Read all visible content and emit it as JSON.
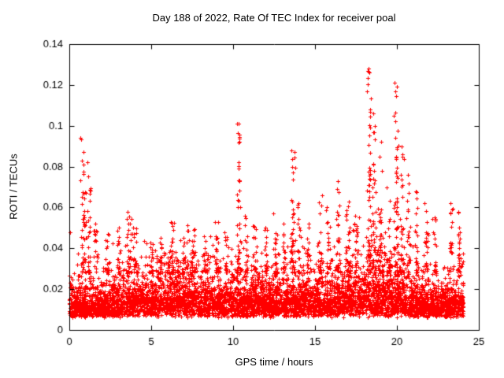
{
  "chart_data": {
    "type": "scatter",
    "title": "Day 188 of 2022, Rate Of TEC Index for receiver poal",
    "xlabel": "GPS time / hours",
    "ylabel": "ROTI / TECUs",
    "xlim": [
      0,
      25
    ],
    "ylim": [
      0,
      0.14
    ],
    "xticks": [
      0,
      5,
      10,
      15,
      20,
      25
    ],
    "yticks": [
      0,
      0.02,
      0.04,
      0.06,
      0.08,
      0.1,
      0.12,
      0.14
    ],
    "grid": false,
    "legend": "none",
    "marker": "plus",
    "marker_color": "#ff0000",
    "axis_color": "#000000",
    "background": "#ffffff",
    "seed": 188,
    "data_x_range": [
      0,
      24.05
    ],
    "baseline_band": {
      "count": 6000,
      "y_floor": 0.006,
      "y_scale": 0.0095,
      "y_typical": [
        0.01,
        0.03
      ],
      "y_cap": 0.062
    },
    "spikes": [
      {
        "x": 0.85,
        "peak": 0.094,
        "count": 45,
        "spread": 0.1
      },
      {
        "x": 1.2,
        "peak": 0.082,
        "count": 30,
        "spread": 0.08
      },
      {
        "x": 1.6,
        "peak": 0.052,
        "count": 18,
        "spread": 0.1
      },
      {
        "x": 2.3,
        "peak": 0.047,
        "count": 14,
        "spread": 0.1
      },
      {
        "x": 3.0,
        "peak": 0.05,
        "count": 18,
        "spread": 0.1
      },
      {
        "x": 3.6,
        "peak": 0.058,
        "count": 28,
        "spread": 0.12
      },
      {
        "x": 4.0,
        "peak": 0.05,
        "count": 18,
        "spread": 0.1
      },
      {
        "x": 5.0,
        "peak": 0.043,
        "count": 14,
        "spread": 0.1
      },
      {
        "x": 5.6,
        "peak": 0.045,
        "count": 14,
        "spread": 0.1
      },
      {
        "x": 6.3,
        "peak": 0.053,
        "count": 22,
        "spread": 0.1
      },
      {
        "x": 7.0,
        "peak": 0.045,
        "count": 14,
        "spread": 0.1
      },
      {
        "x": 7.6,
        "peak": 0.049,
        "count": 18,
        "spread": 0.1
      },
      {
        "x": 8.3,
        "peak": 0.046,
        "count": 14,
        "spread": 0.1
      },
      {
        "x": 9.0,
        "peak": 0.053,
        "count": 22,
        "spread": 0.12
      },
      {
        "x": 9.6,
        "peak": 0.048,
        "count": 14,
        "spread": 0.1
      },
      {
        "x": 10.35,
        "peak": 0.101,
        "count": 40,
        "spread": 0.08
      },
      {
        "x": 10.8,
        "peak": 0.056,
        "count": 18,
        "spread": 0.1
      },
      {
        "x": 11.3,
        "peak": 0.051,
        "count": 18,
        "spread": 0.1
      },
      {
        "x": 12.0,
        "peak": 0.05,
        "count": 18,
        "spread": 0.1
      },
      {
        "x": 12.6,
        "peak": 0.057,
        "count": 22,
        "spread": 0.1
      },
      {
        "x": 13.1,
        "peak": 0.052,
        "count": 18,
        "spread": 0.1
      },
      {
        "x": 13.65,
        "peak": 0.088,
        "count": 45,
        "spread": 0.1
      },
      {
        "x": 14.05,
        "peak": 0.062,
        "count": 22,
        "spread": 0.1
      },
      {
        "x": 14.6,
        "peak": 0.052,
        "count": 18,
        "spread": 0.1
      },
      {
        "x": 15.3,
        "peak": 0.066,
        "count": 22,
        "spread": 0.1
      },
      {
        "x": 15.8,
        "peak": 0.06,
        "count": 18,
        "spread": 0.1
      },
      {
        "x": 16.4,
        "peak": 0.073,
        "count": 28,
        "spread": 0.1
      },
      {
        "x": 17.0,
        "peak": 0.063,
        "count": 22,
        "spread": 0.1
      },
      {
        "x": 17.5,
        "peak": 0.056,
        "count": 18,
        "spread": 0.1
      },
      {
        "x": 18.3,
        "peak": 0.128,
        "count": 60,
        "spread": 0.1
      },
      {
        "x": 18.6,
        "peak": 0.106,
        "count": 35,
        "spread": 0.08
      },
      {
        "x": 19.0,
        "peak": 0.092,
        "count": 28,
        "spread": 0.08
      },
      {
        "x": 19.5,
        "peak": 0.07,
        "count": 22,
        "spread": 0.1
      },
      {
        "x": 19.95,
        "peak": 0.121,
        "count": 50,
        "spread": 0.1
      },
      {
        "x": 20.3,
        "peak": 0.09,
        "count": 30,
        "spread": 0.1
      },
      {
        "x": 20.7,
        "peak": 0.076,
        "count": 26,
        "spread": 0.1
      },
      {
        "x": 21.2,
        "peak": 0.068,
        "count": 22,
        "spread": 0.1
      },
      {
        "x": 21.8,
        "peak": 0.062,
        "count": 22,
        "spread": 0.1
      },
      {
        "x": 22.3,
        "peak": 0.055,
        "count": 18,
        "spread": 0.1
      },
      {
        "x": 23.3,
        "peak": 0.062,
        "count": 22,
        "spread": 0.1
      },
      {
        "x": 23.8,
        "peak": 0.058,
        "count": 22,
        "spread": 0.1
      }
    ]
  }
}
